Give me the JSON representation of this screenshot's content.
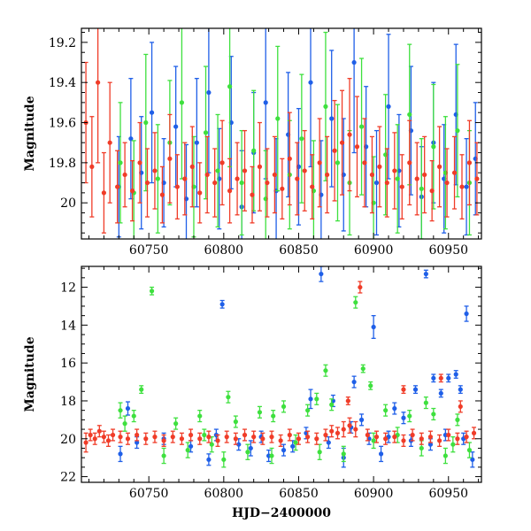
{
  "chart_data": [
    {
      "type": "scatter",
      "panel": "top",
      "title": "",
      "xlabel": "",
      "ylabel": "Magnitude",
      "xlim": [
        60705,
        60972
      ],
      "ylim": [
        20.18,
        19.13
      ],
      "y_inverted": true,
      "xticks": [
        60750,
        60800,
        60850,
        60900,
        60950
      ],
      "xtick_labels": [
        "60750",
        "60800",
        "60850",
        "60900",
        "60950"
      ],
      "yticks": [
        19.2,
        19.4,
        19.6,
        19.8,
        20.0
      ],
      "ytick_labels": [
        "19.2",
        "19.4",
        "19.6",
        "19.8",
        "20"
      ],
      "series": [
        {
          "name": "blue",
          "color": "#1f5fe8",
          "x": [
            60730,
            60738,
            60745,
            60752,
            60760,
            60768,
            60775,
            60782,
            60790,
            60797,
            60805,
            60812,
            60820,
            60828,
            60835,
            60843,
            60850,
            60858,
            60865,
            60872,
            60880,
            60887,
            60895,
            60902,
            60910,
            60917,
            60925,
            60932,
            60940,
            60947,
            60955,
            60962,
            60968
          ],
          "y": [
            19.92,
            19.68,
            19.85,
            19.55,
            19.9,
            19.62,
            19.98,
            19.7,
            19.45,
            19.88,
            19.6,
            20.02,
            19.75,
            19.5,
            19.94,
            19.66,
            19.82,
            19.4,
            19.96,
            19.58,
            19.86,
            19.3,
            19.72,
            19.9,
            19.52,
            19.84,
            19.64,
            19.97,
            19.7,
            19.88,
            19.56,
            19.92,
            19.78
          ],
          "err": [
            0.25,
            0.3,
            0.28,
            0.35,
            0.22,
            0.3,
            0.27,
            0.32,
            0.4,
            0.25,
            0.33,
            0.28,
            0.3,
            0.38,
            0.26,
            0.31,
            0.29,
            0.42,
            0.27,
            0.34,
            0.28,
            0.45,
            0.3,
            0.26,
            0.36,
            0.28,
            0.32,
            0.25,
            0.3,
            0.27,
            0.35,
            0.24,
            0.28
          ]
        },
        {
          "name": "green",
          "color": "#3ee03e",
          "x": [
            60731,
            60740,
            60748,
            60756,
            60764,
            60772,
            60780,
            60788,
            60796,
            60804,
            60812,
            60820,
            60828,
            60836,
            60844,
            60852,
            60860,
            60868,
            60876,
            60884,
            60892,
            60900,
            60908,
            60916,
            60924,
            60932,
            60940,
            60948,
            60956,
            60964
          ],
          "y": [
            19.8,
            19.95,
            19.6,
            19.88,
            19.7,
            19.5,
            19.92,
            19.65,
            19.84,
            19.42,
            19.9,
            19.74,
            19.98,
            19.58,
            19.86,
            19.68,
            19.94,
            19.52,
            19.8,
            19.9,
            19.62,
            20.0,
            19.76,
            19.88,
            19.56,
            19.93,
            19.72,
            19.85,
            19.64,
            19.9
          ],
          "err": [
            0.3,
            0.26,
            0.34,
            0.27,
            0.31,
            0.38,
            0.25,
            0.33,
            0.28,
            0.4,
            0.26,
            0.3,
            0.24,
            0.36,
            0.27,
            0.32,
            0.25,
            0.37,
            0.29,
            0.26,
            0.34,
            0.23,
            0.3,
            0.27,
            0.35,
            0.25,
            0.31,
            0.28,
            0.33,
            0.26
          ]
        },
        {
          "name": "red",
          "color": "#f03c28",
          "x": [
            60708,
            60712,
            60716,
            60720,
            60724,
            60729,
            60734,
            60739,
            60744,
            60749,
            60754,
            60759,
            60764,
            60769,
            60774,
            60779,
            60784,
            60789,
            60794,
            60799,
            60804,
            60809,
            60814,
            60819,
            60824,
            60829,
            60834,
            60839,
            60844,
            60849,
            60854,
            60859,
            60864,
            60869,
            60874,
            60879,
            60884,
            60889,
            60894,
            60899,
            60904,
            60909,
            60914,
            60919,
            60924,
            60929,
            60934,
            60939,
            60944,
            60949,
            60954,
            60959,
            60964,
            60969
          ],
          "y": [
            19.6,
            19.82,
            19.4,
            19.95,
            19.7,
            19.92,
            19.86,
            19.94,
            19.8,
            19.9,
            19.84,
            19.96,
            19.78,
            19.92,
            19.88,
            19.82,
            19.95,
            19.86,
            19.9,
            19.8,
            19.94,
            19.88,
            19.84,
            19.96,
            19.82,
            19.9,
            19.86,
            19.93,
            19.78,
            19.88,
            19.84,
            19.92,
            19.8,
            19.86,
            19.74,
            19.7,
            19.66,
            19.72,
            19.8,
            19.86,
            19.82,
            19.9,
            19.84,
            19.92,
            19.8,
            19.88,
            19.86,
            19.94,
            19.82,
            19.9,
            19.85,
            19.92,
            19.8,
            19.88
          ],
          "err": [
            0.3,
            0.25,
            0.4,
            0.2,
            0.3,
            0.18,
            0.16,
            0.15,
            0.2,
            0.17,
            0.19,
            0.14,
            0.22,
            0.16,
            0.18,
            0.2,
            0.15,
            0.19,
            0.17,
            0.21,
            0.16,
            0.18,
            0.2,
            0.14,
            0.22,
            0.17,
            0.19,
            0.15,
            0.23,
            0.18,
            0.2,
            0.16,
            0.22,
            0.19,
            0.25,
            0.26,
            0.28,
            0.25,
            0.22,
            0.19,
            0.2,
            0.17,
            0.19,
            0.16,
            0.21,
            0.18,
            0.19,
            0.15,
            0.2,
            0.17,
            0.18,
            0.16,
            0.21,
            0.18
          ]
        }
      ]
    },
    {
      "type": "scatter",
      "panel": "bottom",
      "title": "",
      "xlabel": "HJD−2400000",
      "ylabel": "Magnitude",
      "xlim": [
        60705,
        60972
      ],
      "ylim": [
        22.3,
        10.9
      ],
      "y_inverted": true,
      "xticks": [
        60750,
        60800,
        60850,
        60900,
        60950
      ],
      "xtick_labels": [
        "60750",
        "60800",
        "60850",
        "60900",
        "60950"
      ],
      "yticks": [
        12,
        14,
        16,
        18,
        20,
        22
      ],
      "ytick_labels": [
        "12",
        "14",
        "16",
        "18",
        "20",
        "22"
      ],
      "series": [
        {
          "name": "blue",
          "color": "#1f5fe8",
          "x": [
            60731,
            60736,
            60790,
            60799,
            60818,
            60830,
            60846,
            60858,
            60865,
            60873,
            60880,
            60887,
            60892,
            60900,
            60905,
            60914,
            60920,
            60928,
            60935,
            60940,
            60945,
            60950,
            60955,
            60958,
            60962,
            60966,
            60742,
            60760,
            60778,
            60795,
            60810,
            60825,
            60840,
            60855,
            60870,
            60885,
            60897,
            60910,
            60925,
            60938,
            60948,
            60960
          ],
          "y": [
            20.8,
            18.4,
            21.1,
            12.9,
            20.5,
            20.9,
            20.4,
            17.9,
            11.3,
            18.0,
            21.0,
            17.0,
            19.0,
            14.1,
            20.8,
            18.4,
            18.9,
            17.4,
            11.3,
            16.8,
            17.6,
            16.8,
            16.6,
            17.4,
            13.4,
            21.1,
            20.2,
            20.0,
            20.4,
            19.8,
            20.3,
            19.9,
            20.6,
            19.7,
            20.2,
            19.4,
            20.0,
            19.9,
            20.1,
            20.3,
            19.8,
            20.0
          ],
          "err": [
            0.4,
            0.35,
            0.3,
            0.2,
            0.4,
            0.3,
            0.3,
            0.5,
            0.4,
            0.3,
            0.5,
            0.3,
            0.3,
            0.6,
            0.4,
            0.3,
            0.3,
            0.2,
            0.2,
            0.2,
            0.2,
            0.2,
            0.2,
            0.2,
            0.4,
            0.4,
            0.3,
            0.3,
            0.3,
            0.3,
            0.3,
            0.3,
            0.3,
            0.3,
            0.3,
            0.3,
            0.3,
            0.3,
            0.3,
            0.3,
            0.3,
            0.3
          ]
        },
        {
          "name": "green",
          "color": "#3ee03e",
          "x": [
            60731,
            60734,
            60740,
            60752,
            60760,
            60768,
            60776,
            60784,
            60792,
            60800,
            60808,
            60816,
            60824,
            60832,
            60840,
            60848,
            60856,
            60864,
            60868,
            60872,
            60880,
            60888,
            60893,
            60900,
            60908,
            60916,
            60924,
            60932,
            60940,
            60948,
            60956,
            60964,
            60745,
            60787,
            60803,
            60833,
            60862,
            60898,
            60935,
            60953
          ],
          "y": [
            18.5,
            19.2,
            18.8,
            12.2,
            20.9,
            19.2,
            20.6,
            18.8,
            20.3,
            21.1,
            19.1,
            20.7,
            18.6,
            20.9,
            18.3,
            20.2,
            18.5,
            20.7,
            16.4,
            18.2,
            20.8,
            12.8,
            16.3,
            20.1,
            18.5,
            19.8,
            18.8,
            20.5,
            18.7,
            20.9,
            19.0,
            20.6,
            17.4,
            19.8,
            17.8,
            18.8,
            17.9,
            17.2,
            18.1,
            20.3
          ],
          "err": [
            0.4,
            0.4,
            0.3,
            0.2,
            0.4,
            0.3,
            0.4,
            0.3,
            0.4,
            0.4,
            0.3,
            0.4,
            0.3,
            0.4,
            0.3,
            0.4,
            0.3,
            0.4,
            0.3,
            0.3,
            0.4,
            0.3,
            0.2,
            0.4,
            0.3,
            0.4,
            0.3,
            0.4,
            0.3,
            0.4,
            0.3,
            0.4,
            0.2,
            0.3,
            0.3,
            0.3,
            0.3,
            0.2,
            0.3,
            0.4
          ]
        },
        {
          "name": "red",
          "color": "#f03c28",
          "x": [
            60708,
            60711,
            60714,
            60717,
            60720,
            60723,
            60726,
            60731,
            60736,
            60742,
            60748,
            60754,
            60760,
            60766,
            60772,
            60778,
            60784,
            60790,
            60796,
            60802,
            60808,
            60814,
            60820,
            60826,
            60832,
            60838,
            60844,
            60850,
            60856,
            60862,
            60868,
            60872,
            60876,
            60880,
            60884,
            60888,
            60891,
            60896,
            60902,
            60908,
            60914,
            60920,
            60926,
            60932,
            60938,
            60944,
            60950,
            60956,
            60962,
            60967,
            60883,
            60920,
            60945,
            60958
          ],
          "y": [
            20.2,
            19.8,
            20.0,
            19.6,
            19.9,
            20.1,
            19.8,
            19.9,
            20.0,
            19.8,
            20.0,
            19.9,
            20.1,
            19.9,
            20.0,
            19.8,
            20.0,
            19.9,
            20.1,
            19.9,
            20.0,
            19.8,
            19.9,
            20.0,
            19.9,
            20.1,
            19.8,
            20.0,
            19.9,
            20.0,
            19.8,
            19.6,
            19.7,
            19.5,
            19.3,
            19.5,
            12.0,
            19.8,
            19.9,
            20.0,
            19.9,
            20.1,
            19.8,
            20.0,
            19.9,
            20.1,
            19.8,
            20.0,
            19.9,
            19.7,
            18.0,
            17.4,
            16.8,
            18.3
          ],
          "err": [
            0.5,
            0.3,
            0.3,
            0.3,
            0.3,
            0.3,
            0.3,
            0.3,
            0.3,
            0.3,
            0.3,
            0.3,
            0.3,
            0.3,
            0.3,
            0.3,
            0.3,
            0.3,
            0.3,
            0.3,
            0.3,
            0.3,
            0.3,
            0.3,
            0.3,
            0.3,
            0.3,
            0.3,
            0.3,
            0.3,
            0.3,
            0.3,
            0.3,
            0.4,
            0.4,
            0.4,
            0.3,
            0.3,
            0.3,
            0.3,
            0.3,
            0.3,
            0.3,
            0.3,
            0.3,
            0.3,
            0.3,
            0.3,
            0.3,
            0.3,
            0.2,
            0.2,
            0.2,
            0.3
          ]
        }
      ]
    }
  ]
}
